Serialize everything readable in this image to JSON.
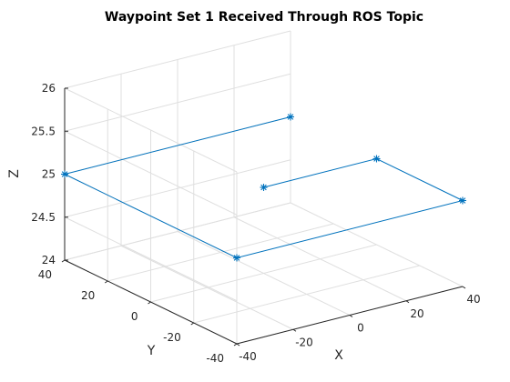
{
  "chart_data": {
    "type": "line3d",
    "title": "Waypoint Set 1 Received Through ROS Topic",
    "xlabel": "X",
    "ylabel": "Y",
    "zlabel": "Z",
    "xlim": [
      -40,
      40
    ],
    "ylim": [
      -40,
      40
    ],
    "zlim": [
      24,
      26
    ],
    "xticks": [
      -40,
      -20,
      0,
      20,
      40
    ],
    "yticks": [
      -40,
      -20,
      0,
      20,
      40
    ],
    "zticks": [
      24,
      24.5,
      25,
      25.5,
      26
    ],
    "xtick_labels": [
      "-40",
      "-20",
      "0",
      "20",
      "40"
    ],
    "ytick_labels": [
      "-40",
      "-20",
      "0",
      "20",
      "40"
    ],
    "ztick_labels": [
      "24",
      "24.5",
      "25",
      "25.5",
      "26"
    ],
    "grid": true,
    "marker": "asterisk",
    "color": "#0072BD",
    "series": [
      {
        "x": [
          0,
          40,
          40,
          -40,
          -40,
          40
        ],
        "y": [
          0,
          0,
          -40,
          -40,
          40,
          40
        ],
        "z": [
          25,
          25,
          25,
          25,
          25,
          25
        ]
      }
    ]
  }
}
